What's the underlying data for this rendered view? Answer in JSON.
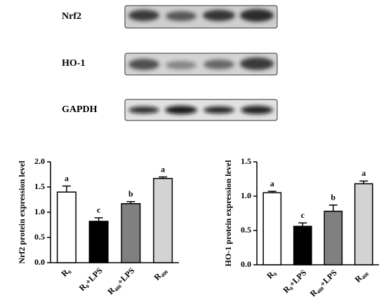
{
  "blot": {
    "labels": [
      "Nrf2",
      "HO-1",
      "GAPDH"
    ]
  },
  "chart_data": [
    {
      "type": "bar",
      "y_label": "Nrf2 protein expression level",
      "categories": [
        "R₀",
        "R₀+LPS",
        "R₄₀₀+LPS",
        "R₄₀₀"
      ],
      "values": [
        1.4,
        0.82,
        1.17,
        1.67
      ],
      "errors": [
        0.12,
        0.07,
        0.04,
        0.03
      ],
      "significance": [
        "a",
        "c",
        "b",
        "a"
      ],
      "colors": [
        "#ffffff",
        "#000000",
        "#808080",
        "#d3d3d3"
      ],
      "ylim": [
        0,
        2
      ],
      "yticks": [
        {
          "value": 0,
          "label": "0.0"
        },
        {
          "value": 0.5,
          "label": "0.5"
        },
        {
          "value": 1,
          "label": "1.0"
        },
        {
          "value": 1.5,
          "label": "1.5"
        },
        {
          "value": 2,
          "label": "2.0"
        }
      ]
    },
    {
      "type": "bar",
      "y_label": "HO-1 protein expression level",
      "categories": [
        "R₀",
        "R₀+LPS",
        "R₄₀₀+LPS",
        "R₄₀₀"
      ],
      "values": [
        1.05,
        0.56,
        0.78,
        1.18
      ],
      "errors": [
        0.02,
        0.05,
        0.09,
        0.04
      ],
      "significance": [
        "a",
        "c",
        "b",
        "a"
      ],
      "colors": [
        "#ffffff",
        "#000000",
        "#808080",
        "#d3d3d3"
      ],
      "ylim": [
        0,
        1.5
      ],
      "yticks": [
        {
          "value": 0,
          "label": "0.0"
        },
        {
          "value": 0.5,
          "label": "0.5"
        },
        {
          "value": 1,
          "label": "1.0"
        },
        {
          "value": 1.5,
          "label": "1.5"
        }
      ]
    }
  ]
}
